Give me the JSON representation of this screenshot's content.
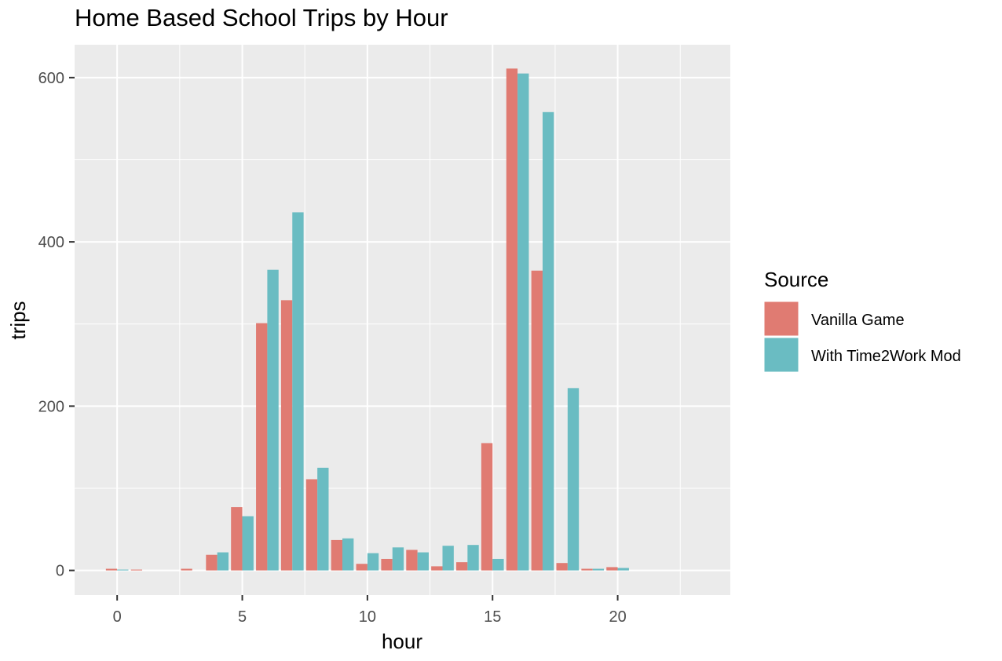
{
  "chart_data": {
    "type": "bar",
    "title": "Home Based School Trips by Hour",
    "xlabel": "hour",
    "ylabel": "trips",
    "xlim": [
      -1.7,
      24.5
    ],
    "ylim": [
      -30,
      640
    ],
    "x_ticks": [
      0,
      5,
      10,
      15,
      20
    ],
    "y_ticks": [
      0,
      200,
      400,
      600
    ],
    "grid": true,
    "legend_position": "right",
    "legend_title": "Source",
    "hours": [
      0,
      1,
      2,
      3,
      4,
      5,
      6,
      7,
      8,
      9,
      10,
      11,
      12,
      13,
      14,
      15,
      16,
      17,
      18,
      19,
      20
    ],
    "series": [
      {
        "name": "Vanilla Game",
        "color": "#E07B72",
        "values": [
          2,
          1,
          0,
          2,
          19,
          77,
          301,
          329,
          111,
          37,
          8,
          14,
          25,
          5,
          10,
          155,
          611,
          365,
          9,
          2,
          4
        ]
      },
      {
        "name": "With Time2Work Mod",
        "color": "#6ABCC2",
        "values": [
          1,
          0,
          0,
          0,
          22,
          66,
          366,
          436,
          125,
          39,
          21,
          28,
          22,
          30,
          31,
          14,
          605,
          558,
          222,
          2,
          3
        ]
      }
    ]
  }
}
